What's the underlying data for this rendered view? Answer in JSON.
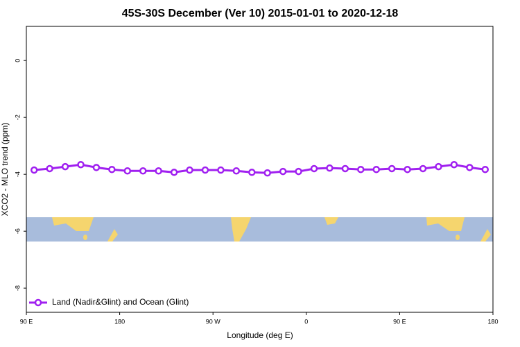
{
  "chart_data": {
    "type": "line",
    "title": "45S-30S December (Ver 10)   2015-01-01 to 2020-12-18",
    "xlabel": "Longitude (deg E)",
    "ylabel": "XCO2 - MLO trend (ppm)",
    "x": [
      97.5,
      112.5,
      127.5,
      142.5,
      157.5,
      172.5,
      187.5,
      202.5,
      217.5,
      232.5,
      247.5,
      262.5,
      277.5,
      292.5,
      307.5,
      322.5,
      337.5,
      352.5,
      367.5,
      382.5,
      397.5,
      412.5,
      427.5,
      442.5,
      457.5,
      472.5,
      487.5,
      502.5,
      517.5,
      532.5
    ],
    "series": [
      {
        "name": "Land (Nadir&Glint) and Ocean (Glint)",
        "color": "#a020f0",
        "values": [
          -3.85,
          -3.8,
          -3.73,
          -3.66,
          -3.76,
          -3.83,
          -3.88,
          -3.88,
          -3.88,
          -3.93,
          -3.85,
          -3.85,
          -3.85,
          -3.88,
          -3.93,
          -3.95,
          -3.9,
          -3.9,
          -3.8,
          -3.78,
          -3.8,
          -3.83,
          -3.83,
          -3.8,
          -3.83,
          -3.8,
          -3.73,
          -3.66,
          -3.76,
          -3.83
        ]
      }
    ],
    "xlim": [
      90,
      540
    ],
    "xticks": [
      {
        "value": 90,
        "label": "90 E"
      },
      {
        "value": 180,
        "label": "180"
      },
      {
        "value": 270,
        "label": "90 W"
      },
      {
        "value": 360,
        "label": "0"
      },
      {
        "value": 450,
        "label": "90 E"
      },
      {
        "value": 540,
        "label": "180"
      }
    ],
    "ylim": [
      -8.85,
      1.2
    ],
    "yticks": [
      0,
      -2,
      -4,
      -6,
      -8
    ],
    "legend": "bottom-left"
  }
}
